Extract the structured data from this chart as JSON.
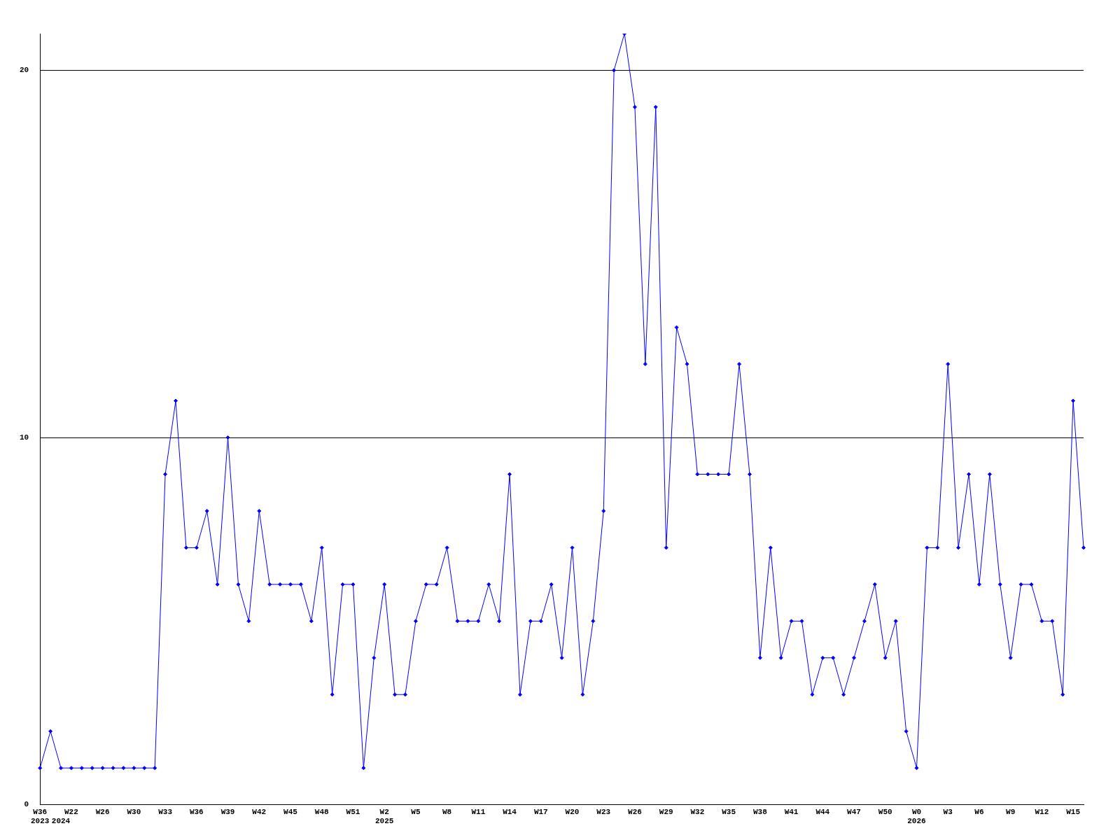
{
  "chart_data": {
    "type": "line",
    "categories": [
      "W36\n2023",
      null,
      "\n2024",
      "W22",
      null,
      null,
      "W26",
      null,
      null,
      "W30",
      null,
      null,
      "W33",
      null,
      null,
      "W36",
      null,
      null,
      "W39",
      null,
      null,
      "W42",
      null,
      null,
      "W45",
      null,
      null,
      "W48",
      null,
      null,
      "W51",
      null,
      null,
      "W2\n2025",
      null,
      null,
      "W5",
      null,
      null,
      "W8",
      null,
      null,
      "W11",
      null,
      null,
      "W14",
      null,
      null,
      "W17",
      null,
      null,
      "W20",
      null,
      null,
      "W23",
      null,
      null,
      "W26",
      null,
      null,
      "W29",
      null,
      null,
      "W32",
      null,
      null,
      "W35",
      null,
      null,
      "W38",
      null,
      null,
      "W41",
      null,
      null,
      "W44",
      null,
      null,
      "W47",
      null,
      null,
      "W50",
      null,
      null,
      "W0\n2026",
      null,
      null,
      "W3",
      null,
      null,
      "W6",
      null,
      null,
      "W9",
      null,
      null,
      "W12",
      null,
      null,
      "W15",
      null
    ],
    "series": [
      {
        "color": "#0000ff",
        "values": [
          1,
          2,
          1,
          1,
          1,
          1,
          1,
          1,
          1,
          1,
          1,
          1,
          9,
          11,
          7,
          7,
          8,
          6,
          10,
          6,
          5,
          8,
          6,
          6,
          6,
          6,
          5,
          7,
          3,
          6,
          6,
          1,
          4,
          6,
          3,
          3,
          5,
          6,
          6,
          7,
          5,
          5,
          5,
          6,
          5,
          9,
          3,
          5,
          5,
          6,
          4,
          7,
          3,
          5,
          8,
          20,
          21,
          19,
          12,
          19,
          7,
          13,
          12,
          9,
          9,
          9,
          9,
          12,
          9,
          4,
          7,
          4,
          5,
          5,
          3,
          4,
          4,
          3,
          4,
          5,
          6,
          4,
          5,
          2,
          1,
          7,
          7,
          12,
          7,
          9,
          6,
          9,
          6,
          4,
          6,
          6,
          5,
          5,
          3,
          11,
          7
        ]
      }
    ],
    "ylim": [
      0,
      21
    ],
    "yticks": [
      0,
      10,
      20
    ],
    "grid": "y",
    "marker": "diamond",
    "legend": false
  }
}
